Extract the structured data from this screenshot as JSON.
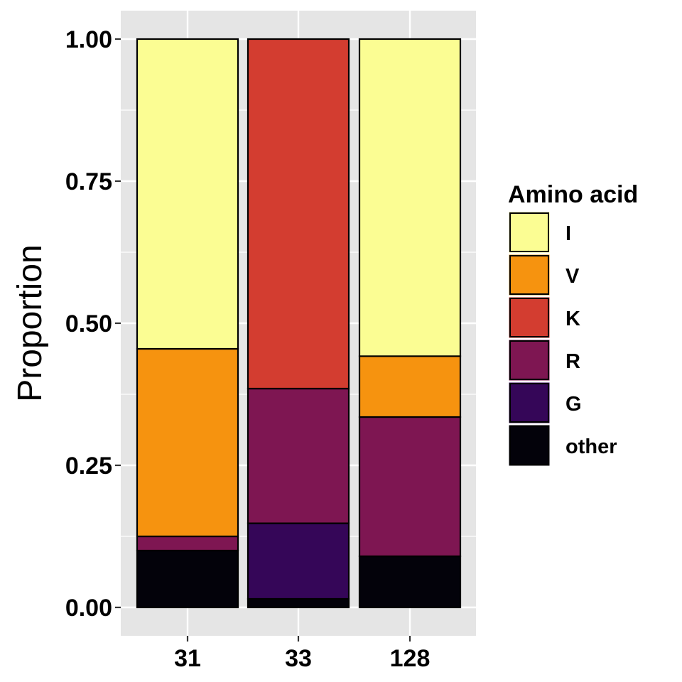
{
  "chart_data": {
    "type": "bar",
    "stacked": true,
    "categories": [
      "31",
      "33",
      "128"
    ],
    "series": [
      {
        "name": "other",
        "color": "#03020a",
        "values": [
          0.1,
          0.015,
          0.09
        ]
      },
      {
        "name": "G",
        "color": "#350658",
        "values": [
          0.0,
          0.133,
          0.0
        ]
      },
      {
        "name": "R",
        "color": "#7e1652",
        "values": [
          0.025,
          0.237,
          0.245
        ]
      },
      {
        "name": "K",
        "color": "#d33d30",
        "values": [
          0.0,
          0.615,
          0.0
        ]
      },
      {
        "name": "V",
        "color": "#f6930f",
        "values": [
          0.33,
          0.0,
          0.107
        ]
      },
      {
        "name": "I",
        "color": "#fbfd93",
        "values": [
          0.545,
          0.0,
          0.558
        ]
      }
    ],
    "legend_order": [
      "I",
      "V",
      "K",
      "R",
      "G",
      "other"
    ],
    "legend_title": "Amino acid",
    "legend_position": "right",
    "ylabel": "Proportion",
    "xlabel": "",
    "ylim": [
      0,
      1
    ],
    "yticks": [
      "0.00",
      "0.25",
      "0.50",
      "0.75",
      "1.00"
    ],
    "ytick_values": [
      0,
      0.25,
      0.5,
      0.75,
      1.0
    ],
    "grid": true,
    "panel_background": "#e5e5e5",
    "grid_color": "#ffffff"
  }
}
